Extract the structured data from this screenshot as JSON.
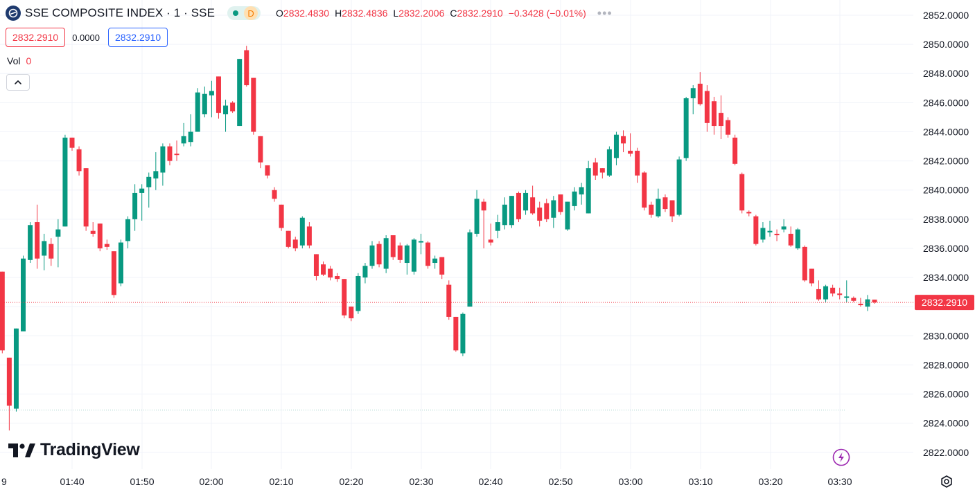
{
  "legend": {
    "symbol": "SSE COMPOSITE INDEX · 1 · SSE",
    "status_letter": "D",
    "ohlc": [
      {
        "key": "O",
        "value": "2832.4830"
      },
      {
        "key": "H",
        "value": "2832.4836"
      },
      {
        "key": "L",
        "value": "2832.2006"
      },
      {
        "key": "C",
        "value": "2832.2910"
      }
    ],
    "change": "−0.3428 (−0.01%)",
    "more": "•••"
  },
  "quote": {
    "sell": "2832.2910",
    "spread": "0.0000",
    "buy": "2832.2910"
  },
  "volume": {
    "label": "Vol",
    "value": "0"
  },
  "branding": {
    "name": "TradingView"
  },
  "colors": {
    "up": "#089981",
    "down": "#f23645",
    "grid": "#f0f3fa",
    "last_price_bg": "#f23645"
  },
  "chart_data": {
    "type": "candlestick",
    "interval": "1 minute",
    "y_axis_side": "right",
    "ylim": [
      2821,
      2853
    ],
    "y_ticks": [
      "2852.0000",
      "2850.0000",
      "2848.0000",
      "2846.0000",
      "2844.0000",
      "2842.0000",
      "2840.0000",
      "2838.0000",
      "2836.0000",
      "2834.0000",
      "2832.0000",
      "2830.0000",
      "2828.0000",
      "2826.0000",
      "2824.0000",
      "2822.0000"
    ],
    "x_ticks": [
      "9",
      "01:40",
      "01:50",
      "02:00",
      "02:10",
      "02:20",
      "02:30",
      "02:40",
      "02:50",
      "03:00",
      "03:10",
      "03:20",
      "03:30"
    ],
    "last_price": "2832.2910",
    "reference_level": 2824.9,
    "candles": [
      {
        "o": 2834.4,
        "h": 2834.4,
        "l": 2828.8,
        "c": 2829.0
      },
      {
        "o": 2828.5,
        "h": 2828.5,
        "l": 2823.5,
        "c": 2825.2
      },
      {
        "o": 2825.0,
        "h": 2830.5,
        "l": 2824.8,
        "c": 2830.5
      },
      {
        "o": 2830.3,
        "h": 2835.5,
        "l": 2830.3,
        "c": 2835.3
      },
      {
        "o": 2835.2,
        "h": 2837.8,
        "l": 2835.0,
        "c": 2837.6
      },
      {
        "o": 2837.8,
        "h": 2839.0,
        "l": 2834.6,
        "c": 2835.3
      },
      {
        "o": 2835.5,
        "h": 2837.0,
        "l": 2834.5,
        "c": 2836.5
      },
      {
        "o": 2836.3,
        "h": 2836.7,
        "l": 2834.8,
        "c": 2835.3
      },
      {
        "o": 2836.8,
        "h": 2838.0,
        "l": 2834.7,
        "c": 2837.3
      },
      {
        "o": 2837.5,
        "h": 2843.8,
        "l": 2837.5,
        "c": 2843.6
      },
      {
        "o": 2843.6,
        "h": 2843.6,
        "l": 2842.7,
        "c": 2842.9
      },
      {
        "o": 2842.8,
        "h": 2843.0,
        "l": 2841.0,
        "c": 2841.3
      },
      {
        "o": 2841.5,
        "h": 2841.5,
        "l": 2837.2,
        "c": 2837.5
      },
      {
        "o": 2837.2,
        "h": 2837.8,
        "l": 2836.8,
        "c": 2837.0
      },
      {
        "o": 2837.7,
        "h": 2837.7,
        "l": 2835.8,
        "c": 2836.0
      },
      {
        "o": 2836.3,
        "h": 2836.6,
        "l": 2835.9,
        "c": 2836.1
      },
      {
        "o": 2835.8,
        "h": 2835.8,
        "l": 2832.6,
        "c": 2832.8
      },
      {
        "o": 2833.6,
        "h": 2836.6,
        "l": 2833.4,
        "c": 2836.4
      },
      {
        "o": 2836.5,
        "h": 2838.2,
        "l": 2836.0,
        "c": 2838.0
      },
      {
        "o": 2838.0,
        "h": 2840.4,
        "l": 2837.2,
        "c": 2839.8
      },
      {
        "o": 2839.8,
        "h": 2840.4,
        "l": 2837.9,
        "c": 2840.1
      },
      {
        "o": 2840.2,
        "h": 2841.2,
        "l": 2838.8,
        "c": 2840.9
      },
      {
        "o": 2840.8,
        "h": 2842.6,
        "l": 2840.0,
        "c": 2841.3
      },
      {
        "o": 2841.2,
        "h": 2843.2,
        "l": 2840.3,
        "c": 2843.0
      },
      {
        "o": 2843.0,
        "h": 2843.2,
        "l": 2841.7,
        "c": 2842.0
      },
      {
        "o": 2842.5,
        "h": 2843.4,
        "l": 2842.0,
        "c": 2842.4
      },
      {
        "o": 2843.2,
        "h": 2844.6,
        "l": 2843.0,
        "c": 2843.7
      },
      {
        "o": 2843.3,
        "h": 2845.2,
        "l": 2843.0,
        "c": 2844.0
      },
      {
        "o": 2844.0,
        "h": 2847.0,
        "l": 2844.0,
        "c": 2846.7
      },
      {
        "o": 2845.2,
        "h": 2847.1,
        "l": 2845.0,
        "c": 2846.6
      },
      {
        "o": 2846.5,
        "h": 2847.5,
        "l": 2845.0,
        "c": 2846.8
      },
      {
        "o": 2847.8,
        "h": 2847.8,
        "l": 2844.9,
        "c": 2845.3
      },
      {
        "o": 2845.2,
        "h": 2846.2,
        "l": 2844.0,
        "c": 2845.8
      },
      {
        "o": 2846.0,
        "h": 2846.1,
        "l": 2845.3,
        "c": 2845.4
      },
      {
        "o": 2844.4,
        "h": 2849.0,
        "l": 2844.4,
        "c": 2849.0
      },
      {
        "o": 2849.6,
        "h": 2849.9,
        "l": 2847.1,
        "c": 2847.2
      },
      {
        "o": 2847.7,
        "h": 2847.7,
        "l": 2843.8,
        "c": 2844.0
      },
      {
        "o": 2843.7,
        "h": 2843.7,
        "l": 2841.5,
        "c": 2841.9
      },
      {
        "o": 2841.7,
        "h": 2841.7,
        "l": 2840.8,
        "c": 2841.0
      },
      {
        "o": 2840.0,
        "h": 2840.2,
        "l": 2839.2,
        "c": 2839.4
      },
      {
        "o": 2839.0,
        "h": 2839.0,
        "l": 2837.2,
        "c": 2837.4
      },
      {
        "o": 2837.2,
        "h": 2837.2,
        "l": 2836.0,
        "c": 2836.1
      },
      {
        "o": 2836.6,
        "h": 2836.8,
        "l": 2835.8,
        "c": 2836.0
      },
      {
        "o": 2836.2,
        "h": 2838.2,
        "l": 2836.0,
        "c": 2838.1
      },
      {
        "o": 2837.5,
        "h": 2837.8,
        "l": 2836.0,
        "c": 2836.2
      },
      {
        "o": 2835.6,
        "h": 2835.6,
        "l": 2833.8,
        "c": 2834.1
      },
      {
        "o": 2834.9,
        "h": 2835.1,
        "l": 2834.1,
        "c": 2834.2
      },
      {
        "o": 2834.6,
        "h": 2834.8,
        "l": 2833.8,
        "c": 2834.0
      },
      {
        "o": 2834.1,
        "h": 2834.3,
        "l": 2833.7,
        "c": 2833.9
      },
      {
        "o": 2833.9,
        "h": 2833.9,
        "l": 2831.2,
        "c": 2831.4
      },
      {
        "o": 2832.0,
        "h": 2832.0,
        "l": 2831.0,
        "c": 2831.2
      },
      {
        "o": 2831.7,
        "h": 2834.3,
        "l": 2831.5,
        "c": 2834.1
      },
      {
        "o": 2834.0,
        "h": 2835.0,
        "l": 2833.6,
        "c": 2834.8
      },
      {
        "o": 2834.8,
        "h": 2836.5,
        "l": 2834.6,
        "c": 2836.2
      },
      {
        "o": 2836.3,
        "h": 2836.5,
        "l": 2834.7,
        "c": 2834.9
      },
      {
        "o": 2834.6,
        "h": 2836.9,
        "l": 2834.3,
        "c": 2836.7
      },
      {
        "o": 2836.9,
        "h": 2836.9,
        "l": 2835.2,
        "c": 2835.4
      },
      {
        "o": 2836.2,
        "h": 2836.4,
        "l": 2835.0,
        "c": 2835.2
      },
      {
        "o": 2835.0,
        "h": 2836.3,
        "l": 2834.2,
        "c": 2836.2
      },
      {
        "o": 2834.4,
        "h": 2836.7,
        "l": 2834.2,
        "c": 2836.6
      },
      {
        "o": 2836.4,
        "h": 2837.0,
        "l": 2835.6,
        "c": 2836.5
      },
      {
        "o": 2836.4,
        "h": 2836.5,
        "l": 2834.6,
        "c": 2834.8
      },
      {
        "o": 2835.0,
        "h": 2835.5,
        "l": 2834.6,
        "c": 2835.3
      },
      {
        "o": 2835.4,
        "h": 2835.4,
        "l": 2833.9,
        "c": 2834.2
      },
      {
        "o": 2833.5,
        "h": 2833.8,
        "l": 2831.1,
        "c": 2831.3
      },
      {
        "o": 2831.3,
        "h": 2831.3,
        "l": 2828.9,
        "c": 2829.0
      },
      {
        "o": 2828.8,
        "h": 2831.6,
        "l": 2828.6,
        "c": 2831.5
      },
      {
        "o": 2832.0,
        "h": 2837.3,
        "l": 2832.0,
        "c": 2837.1
      },
      {
        "o": 2837.0,
        "h": 2840.0,
        "l": 2836.8,
        "c": 2839.4
      },
      {
        "o": 2839.2,
        "h": 2839.4,
        "l": 2836.0,
        "c": 2838.6
      },
      {
        "o": 2836.6,
        "h": 2837.7,
        "l": 2836.2,
        "c": 2836.4
      },
      {
        "o": 2837.2,
        "h": 2838.3,
        "l": 2836.7,
        "c": 2837.8
      },
      {
        "o": 2837.6,
        "h": 2839.5,
        "l": 2837.3,
        "c": 2839.0
      },
      {
        "o": 2837.6,
        "h": 2839.6,
        "l": 2837.4,
        "c": 2839.6
      },
      {
        "o": 2839.8,
        "h": 2839.9,
        "l": 2837.8,
        "c": 2838.0
      },
      {
        "o": 2838.6,
        "h": 2840.0,
        "l": 2838.3,
        "c": 2839.8
      },
      {
        "o": 2839.5,
        "h": 2840.3,
        "l": 2838.3,
        "c": 2838.4
      },
      {
        "o": 2838.8,
        "h": 2839.2,
        "l": 2837.5,
        "c": 2837.9
      },
      {
        "o": 2839.1,
        "h": 2839.4,
        "l": 2837.8,
        "c": 2838.0
      },
      {
        "o": 2838.1,
        "h": 2839.6,
        "l": 2837.4,
        "c": 2839.3
      },
      {
        "o": 2839.7,
        "h": 2839.7,
        "l": 2838.3,
        "c": 2838.5
      },
      {
        "o": 2837.3,
        "h": 2839.2,
        "l": 2837.2,
        "c": 2839.2
      },
      {
        "o": 2838.9,
        "h": 2840.2,
        "l": 2838.6,
        "c": 2839.9
      },
      {
        "o": 2839.7,
        "h": 2840.5,
        "l": 2839.0,
        "c": 2840.2
      },
      {
        "o": 2838.4,
        "h": 2842.0,
        "l": 2838.4,
        "c": 2841.5
      },
      {
        "o": 2841.9,
        "h": 2842.2,
        "l": 2840.7,
        "c": 2841.0
      },
      {
        "o": 2841.5,
        "h": 2841.5,
        "l": 2840.8,
        "c": 2841.2
      },
      {
        "o": 2841.0,
        "h": 2843.0,
        "l": 2840.9,
        "c": 2842.8
      },
      {
        "o": 2842.2,
        "h": 2844.0,
        "l": 2841.7,
        "c": 2843.8
      },
      {
        "o": 2843.7,
        "h": 2844.1,
        "l": 2842.6,
        "c": 2843.2
      },
      {
        "o": 2842.7,
        "h": 2843.9,
        "l": 2842.3,
        "c": 2842.5
      },
      {
        "o": 2842.7,
        "h": 2842.9,
        "l": 2840.5,
        "c": 2841.0
      },
      {
        "o": 2841.2,
        "h": 2841.3,
        "l": 2838.6,
        "c": 2838.8
      },
      {
        "o": 2839.0,
        "h": 2839.2,
        "l": 2838.1,
        "c": 2838.3
      },
      {
        "o": 2838.2,
        "h": 2840.1,
        "l": 2838.1,
        "c": 2839.4
      },
      {
        "o": 2839.5,
        "h": 2839.7,
        "l": 2838.5,
        "c": 2838.7
      },
      {
        "o": 2839.3,
        "h": 2839.3,
        "l": 2837.8,
        "c": 2838.2
      },
      {
        "o": 2838.3,
        "h": 2842.3,
        "l": 2838.2,
        "c": 2842.1
      },
      {
        "o": 2842.2,
        "h": 2846.4,
        "l": 2842.0,
        "c": 2846.3
      },
      {
        "o": 2846.3,
        "h": 2847.2,
        "l": 2845.2,
        "c": 2847.0
      },
      {
        "o": 2847.3,
        "h": 2848.1,
        "l": 2845.8,
        "c": 2845.9
      },
      {
        "o": 2846.8,
        "h": 2847.2,
        "l": 2844.0,
        "c": 2844.6
      },
      {
        "o": 2846.1,
        "h": 2846.4,
        "l": 2843.8,
        "c": 2844.4
      },
      {
        "o": 2845.3,
        "h": 2846.5,
        "l": 2843.5,
        "c": 2844.4
      },
      {
        "o": 2844.8,
        "h": 2845.0,
        "l": 2843.6,
        "c": 2843.8
      },
      {
        "o": 2843.6,
        "h": 2843.8,
        "l": 2841.7,
        "c": 2841.8
      },
      {
        "o": 2841.1,
        "h": 2841.2,
        "l": 2838.4,
        "c": 2838.6
      },
      {
        "o": 2838.5,
        "h": 2838.6,
        "l": 2838.2,
        "c": 2838.4
      },
      {
        "o": 2838.2,
        "h": 2838.3,
        "l": 2836.2,
        "c": 2836.3
      },
      {
        "o": 2836.6,
        "h": 2837.8,
        "l": 2836.4,
        "c": 2837.4
      },
      {
        "o": 2837.1,
        "h": 2837.9,
        "l": 2836.8,
        "c": 2837.2
      },
      {
        "o": 2837.0,
        "h": 2837.3,
        "l": 2836.5,
        "c": 2836.9
      },
      {
        "o": 2837.3,
        "h": 2838.0,
        "l": 2837.1,
        "c": 2837.5
      },
      {
        "o": 2837.0,
        "h": 2837.5,
        "l": 2836.1,
        "c": 2836.2
      },
      {
        "o": 2836.0,
        "h": 2837.4,
        "l": 2835.9,
        "c": 2837.3
      },
      {
        "o": 2836.1,
        "h": 2836.2,
        "l": 2833.7,
        "c": 2833.8
      },
      {
        "o": 2834.6,
        "h": 2834.6,
        "l": 2833.4,
        "c": 2833.6
      },
      {
        "o": 2833.2,
        "h": 2833.8,
        "l": 2832.4,
        "c": 2832.5
      },
      {
        "o": 2832.5,
        "h": 2833.5,
        "l": 2832.3,
        "c": 2833.4
      },
      {
        "o": 2833.3,
        "h": 2833.5,
        "l": 2832.7,
        "c": 2832.9
      },
      {
        "o": 2832.9,
        "h": 2833.3,
        "l": 2832.5,
        "c": 2832.8
      },
      {
        "o": 2832.6,
        "h": 2833.8,
        "l": 2832.3,
        "c": 2832.7
      },
      {
        "o": 2832.6,
        "h": 2832.7,
        "l": 2832.3,
        "c": 2832.4
      },
      {
        "o": 2832.2,
        "h": 2832.6,
        "l": 2832.0,
        "c": 2832.1
      },
      {
        "o": 2832.0,
        "h": 2832.8,
        "l": 2831.7,
        "c": 2832.5
      },
      {
        "o": 2832.48,
        "h": 2832.48,
        "l": 2832.2,
        "c": 2832.29
      }
    ]
  }
}
